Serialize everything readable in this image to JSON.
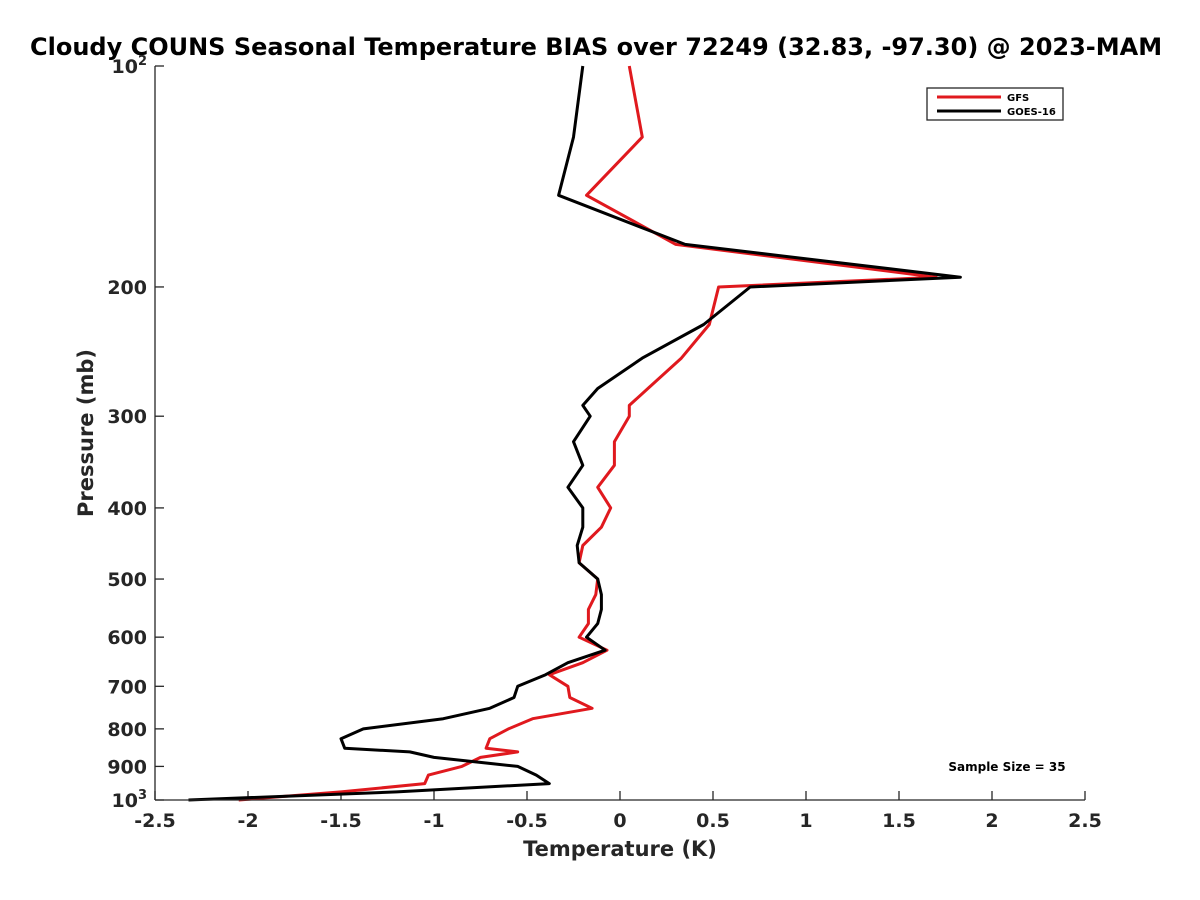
{
  "chart_data": {
    "type": "line",
    "title": "Cloudy COUNS Seasonal Temperature BIAS over 72249 (32.83, -97.30) @ 2023-MAM",
    "xlabel": "Temperature (K)",
    "ylabel": "Pressure (mb)",
    "xlim": [
      -2.5,
      2.5
    ],
    "ylim": [
      1000,
      100
    ],
    "yscale": "log",
    "x_ticks": [
      -2.5,
      -2,
      -1.5,
      -1,
      -0.5,
      0,
      0.5,
      1,
      1.5,
      2,
      2.5
    ],
    "x_tick_labels": [
      "-2.5",
      "-2",
      "-1.5",
      "-1",
      "-0.5",
      "0",
      "0.5",
      "1",
      "1.5",
      "2",
      "2.5"
    ],
    "y_ticks": [
      {
        "value": 100,
        "base": "10",
        "exp": "2"
      },
      {
        "value": 200,
        "text": "200"
      },
      {
        "value": 300,
        "text": "300"
      },
      {
        "value": 400,
        "text": "400"
      },
      {
        "value": 500,
        "text": "500"
      },
      {
        "value": 600,
        "text": "600"
      },
      {
        "value": 700,
        "text": "700"
      },
      {
        "value": 800,
        "text": "800"
      },
      {
        "value": 900,
        "text": "900"
      },
      {
        "value": 1000,
        "base": "10",
        "exp": "3"
      }
    ],
    "legend_position": "top-right",
    "series": [
      {
        "name": "GFS",
        "color": "#e0191e",
        "points": [
          [
            0.05,
            100
          ],
          [
            0.12,
            125
          ],
          [
            -0.18,
            150
          ],
          [
            0.3,
            175
          ],
          [
            1.7,
            194
          ],
          [
            0.53,
            200
          ],
          [
            0.48,
            225
          ],
          [
            0.33,
            250
          ],
          [
            0.15,
            275
          ],
          [
            0.05,
            290
          ],
          [
            0.05,
            300
          ],
          [
            -0.03,
            325
          ],
          [
            -0.03,
            350
          ],
          [
            -0.12,
            375
          ],
          [
            -0.05,
            400
          ],
          [
            -0.1,
            425
          ],
          [
            -0.2,
            450
          ],
          [
            -0.22,
            475
          ],
          [
            -0.12,
            500
          ],
          [
            -0.13,
            525
          ],
          [
            -0.17,
            550
          ],
          [
            -0.17,
            575
          ],
          [
            -0.22,
            600
          ],
          [
            -0.07,
            625
          ],
          [
            -0.2,
            650
          ],
          [
            -0.38,
            675
          ],
          [
            -0.28,
            700
          ],
          [
            -0.27,
            725
          ],
          [
            -0.15,
            750
          ],
          [
            -0.47,
            775
          ],
          [
            -0.6,
            800
          ],
          [
            -0.7,
            825
          ],
          [
            -0.72,
            850
          ],
          [
            -0.55,
            860
          ],
          [
            -0.75,
            875
          ],
          [
            -0.85,
            900
          ],
          [
            -1.03,
            925
          ],
          [
            -1.05,
            950
          ],
          [
            -1.5,
            975
          ],
          [
            -2.05,
            1000
          ]
        ]
      },
      {
        "name": "GOES-16",
        "color": "#000000",
        "points": [
          [
            -0.2,
            100
          ],
          [
            -0.25,
            125
          ],
          [
            -0.33,
            150
          ],
          [
            0.35,
            175
          ],
          [
            1.83,
            194
          ],
          [
            0.7,
            200
          ],
          [
            0.45,
            225
          ],
          [
            0.12,
            250
          ],
          [
            -0.12,
            275
          ],
          [
            -0.2,
            290
          ],
          [
            -0.16,
            300
          ],
          [
            -0.25,
            325
          ],
          [
            -0.2,
            350
          ],
          [
            -0.28,
            375
          ],
          [
            -0.2,
            400
          ],
          [
            -0.2,
            425
          ],
          [
            -0.23,
            450
          ],
          [
            -0.22,
            475
          ],
          [
            -0.12,
            500
          ],
          [
            -0.1,
            525
          ],
          [
            -0.1,
            550
          ],
          [
            -0.12,
            575
          ],
          [
            -0.18,
            600
          ],
          [
            -0.08,
            625
          ],
          [
            -0.28,
            650
          ],
          [
            -0.4,
            675
          ],
          [
            -0.55,
            700
          ],
          [
            -0.57,
            725
          ],
          [
            -0.7,
            750
          ],
          [
            -0.95,
            775
          ],
          [
            -1.38,
            800
          ],
          [
            -1.5,
            825
          ],
          [
            -1.48,
            850
          ],
          [
            -1.13,
            860
          ],
          [
            -1.0,
            875
          ],
          [
            -0.55,
            900
          ],
          [
            -0.45,
            925
          ],
          [
            -0.38,
            950
          ],
          [
            -1.2,
            975
          ],
          [
            -2.32,
            1000
          ]
        ]
      }
    ],
    "annotation": "Sample Size = 35"
  }
}
